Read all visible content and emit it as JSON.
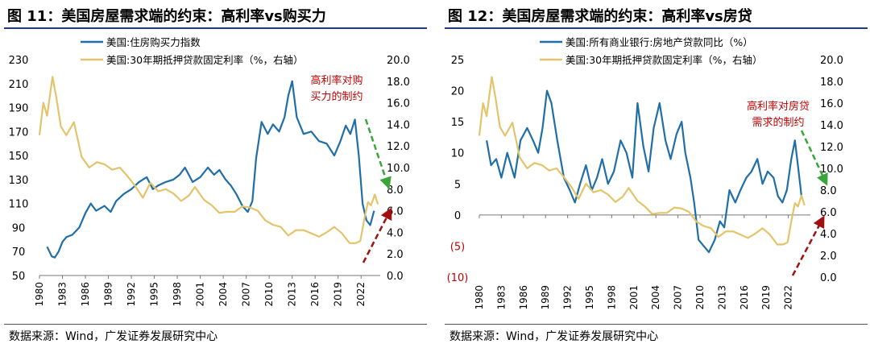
{
  "source_text": "数据来源：Wind，广发证券发展研究中心",
  "colors": {
    "blue": "#1f6ea8",
    "gold": "#e3c46b",
    "red": "#c00000",
    "green": "#3aa63a",
    "darkred": "#a01010"
  },
  "chart_data": [
    {
      "type": "line",
      "title": "图  11：美国房屋需求端的约束：高利率vs购买力",
      "annotation": [
        "高利率对购",
        "买力的制约"
      ],
      "ylim_left": [
        50,
        230
      ],
      "yticks_left": [
        "230",
        "210",
        "190",
        "170",
        "150",
        "130",
        "110",
        "90",
        "70",
        "50"
      ],
      "ylim_right": [
        0,
        20
      ],
      "yticks_right": [
        "20.0",
        "18.0",
        "16.0",
        "14.0",
        "12.0",
        "10.0",
        "8.0",
        "6.0",
        "4.0",
        "2.0",
        "0.0"
      ],
      "xlim": [
        1980,
        2024.5
      ],
      "xticks": [
        "1980",
        "1983",
        "1986",
        "1989",
        "1992",
        "1995",
        "1998",
        "2001",
        "2004",
        "2007",
        "2010",
        "2013",
        "2016",
        "2019",
        "2022"
      ],
      "series": [
        {
          "name": "美国:住房购买力指数",
          "axis": "left",
          "x": [
            1981,
            1981.6,
            1982.0,
            1982.5,
            1983.0,
            1983.5,
            1984.3,
            1985.2,
            1986.0,
            1986.7,
            1987.4,
            1988.5,
            1989.3,
            1990.0,
            1991.0,
            1992.0,
            1993.0,
            1994.0,
            1994.8,
            1995.5,
            1996.5,
            1997.5,
            1998.3,
            1999.0,
            2000.0,
            2001.0,
            2002.0,
            2002.8,
            2003.5,
            2004.3,
            2005.0,
            2005.7,
            2006.5,
            2007.2,
            2007.8,
            2008.3,
            2009.0,
            2009.8,
            2010.5,
            2011.3,
            2012.0,
            2012.5,
            2013.0,
            2013.6,
            2014.5,
            2015.5,
            2016.5,
            2017.5,
            2018.5,
            2019.3,
            2020.0,
            2020.6,
            2021.2,
            2021.7,
            2022.2,
            2022.7,
            2023.2,
            2023.7
          ],
          "y": [
            74,
            66,
            65,
            70,
            78,
            82,
            84,
            90,
            102,
            110,
            104,
            108,
            103,
            112,
            118,
            122,
            128,
            132,
            122,
            125,
            128,
            130,
            134,
            140,
            128,
            132,
            140,
            134,
            138,
            130,
            125,
            118,
            108,
            103,
            112,
            148,
            178,
            168,
            176,
            170,
            182,
            200,
            212,
            182,
            168,
            170,
            162,
            160,
            150,
            162,
            175,
            168,
            180,
            150,
            110,
            96,
            92,
            104
          ]
        },
        {
          "name": "美国:30年期抵押贷款固定利率（%，右轴）",
          "axis": "right",
          "x": [
            1980,
            1980.5,
            1981.0,
            1981.7,
            1982.2,
            1982.8,
            1983.5,
            1984.5,
            1985.5,
            1986.5,
            1987.5,
            1988.5,
            1989.5,
            1990.5,
            1991.5,
            1992.5,
            1993.5,
            1994.5,
            1995.5,
            1996.5,
            1997.5,
            1998.5,
            1999.5,
            2000.3,
            2001.5,
            2002.5,
            2003.5,
            2004.5,
            2005.5,
            2006.5,
            2007.5,
            2008.5,
            2009.5,
            2010.5,
            2011.5,
            2012.5,
            2013.5,
            2014.5,
            2015.5,
            2016.5,
            2017.5,
            2018.5,
            2019.5,
            2020.5,
            2021.3,
            2021.9,
            2022.5,
            2022.9,
            2023.3,
            2023.8,
            2024.2
          ],
          "y": [
            13.0,
            16.0,
            14.8,
            18.4,
            16.5,
            13.8,
            13.0,
            14.2,
            11.0,
            10.0,
            10.5,
            10.3,
            9.8,
            10.0,
            9.2,
            8.3,
            7.2,
            8.6,
            7.8,
            8.0,
            7.6,
            6.9,
            7.4,
            8.2,
            7.0,
            6.5,
            5.8,
            5.9,
            5.9,
            6.4,
            6.3,
            6.0,
            5.1,
            4.7,
            4.5,
            3.7,
            4.2,
            4.2,
            3.9,
            3.6,
            4.0,
            4.5,
            3.9,
            3.0,
            3.0,
            3.2,
            5.5,
            6.8,
            6.5,
            7.5,
            6.6
          ]
        }
      ]
    },
    {
      "type": "line",
      "title": "图  12：美国房屋需求端的约束：高利率vs房贷",
      "annotation": [
        "高利率对房贷",
        "需求的制约"
      ],
      "ylim_left": [
        -10,
        25
      ],
      "yticks_left": [
        "25",
        "20",
        "15",
        "10",
        "5",
        "0",
        "(5)",
        "(10)"
      ],
      "ylim_right": [
        0,
        20
      ],
      "yticks_right": [
        "20.0",
        "18.0",
        "16.0",
        "14.0",
        "12.0",
        "10.0",
        "8.0",
        "6.0",
        "4.0",
        "2.0",
        "0.0"
      ],
      "xlim": [
        1980,
        2025
      ],
      "xticks": [
        "1980",
        "1983",
        "1986",
        "1989",
        "1992",
        "1995",
        "1998",
        "2001",
        "2004",
        "2007",
        "2010",
        "2013",
        "2016",
        "2019",
        "2022"
      ],
      "series": [
        {
          "name": "美国:所有商业银行:房地产贷款同比（%）",
          "axis": "left",
          "x": [
            1981,
            1981.6,
            1982.3,
            1983.0,
            1983.8,
            1984.8,
            1985.6,
            1986.5,
            1987.3,
            1988.0,
            1988.6,
            1989.2,
            1989.8,
            1990.6,
            1991.5,
            1992.3,
            1993.0,
            1993.7,
            1994.5,
            1995.3,
            1996.0,
            1996.7,
            1997.5,
            1998.3,
            1999.2,
            2000.0,
            2000.8,
            2001.5,
            2002.3,
            2003.0,
            2003.7,
            2004.5,
            2005.3,
            2006.0,
            2006.8,
            2007.5,
            2008.0,
            2008.7,
            2009.2,
            2009.8,
            2010.5,
            2011.2,
            2012.0,
            2012.7,
            2013.3,
            2014.0,
            2014.8,
            2015.5,
            2016.3,
            2017.0,
            2017.8,
            2018.5,
            2019.2,
            2020.0,
            2020.6,
            2021.2,
            2021.8,
            2022.4,
            2022.9,
            2023.4,
            2023.8
          ],
          "y": [
            12,
            8,
            9,
            6,
            10,
            6,
            12,
            14,
            12,
            10,
            14,
            20,
            18,
            12,
            6,
            4,
            2,
            5,
            8,
            4,
            6,
            9,
            5,
            7,
            12,
            10,
            6,
            18,
            11,
            7,
            14,
            18,
            12,
            9,
            13,
            15,
            10,
            6,
            2,
            -4,
            -5,
            -6,
            -4,
            -1,
            -2,
            4,
            2,
            4,
            6,
            7,
            9,
            5,
            7,
            6,
            3,
            2,
            4,
            9,
            12,
            7,
            3
          ]
        },
        {
          "name": "美国:30年期抵押贷款固定利率（%，右轴）",
          "axis": "right",
          "x": [
            1980,
            1980.5,
            1981.0,
            1981.7,
            1982.2,
            1982.8,
            1983.5,
            1984.5,
            1985.5,
            1986.5,
            1987.5,
            1988.5,
            1989.5,
            1990.5,
            1991.5,
            1992.5,
            1993.5,
            1994.5,
            1995.5,
            1996.5,
            1997.5,
            1998.5,
            1999.5,
            2000.3,
            2001.5,
            2002.5,
            2003.5,
            2004.5,
            2005.5,
            2006.5,
            2007.5,
            2008.5,
            2009.5,
            2010.5,
            2011.5,
            2012.5,
            2013.5,
            2014.5,
            2015.5,
            2016.5,
            2017.5,
            2018.5,
            2019.5,
            2020.5,
            2021.3,
            2021.9,
            2022.5,
            2022.9,
            2023.3,
            2023.8,
            2024.2
          ],
          "y": [
            13.0,
            16.0,
            14.8,
            18.4,
            16.5,
            13.8,
            13.0,
            14.2,
            11.0,
            10.0,
            10.5,
            10.3,
            9.8,
            10.0,
            9.2,
            8.3,
            7.2,
            8.6,
            7.8,
            8.0,
            7.6,
            6.9,
            7.4,
            8.2,
            7.0,
            6.5,
            5.8,
            5.9,
            5.9,
            6.4,
            6.3,
            6.0,
            5.1,
            4.7,
            4.5,
            3.7,
            4.2,
            4.2,
            3.9,
            3.6,
            4.0,
            4.5,
            3.9,
            3.0,
            3.0,
            3.2,
            5.5,
            6.8,
            6.5,
            7.5,
            6.6
          ]
        }
      ]
    }
  ]
}
